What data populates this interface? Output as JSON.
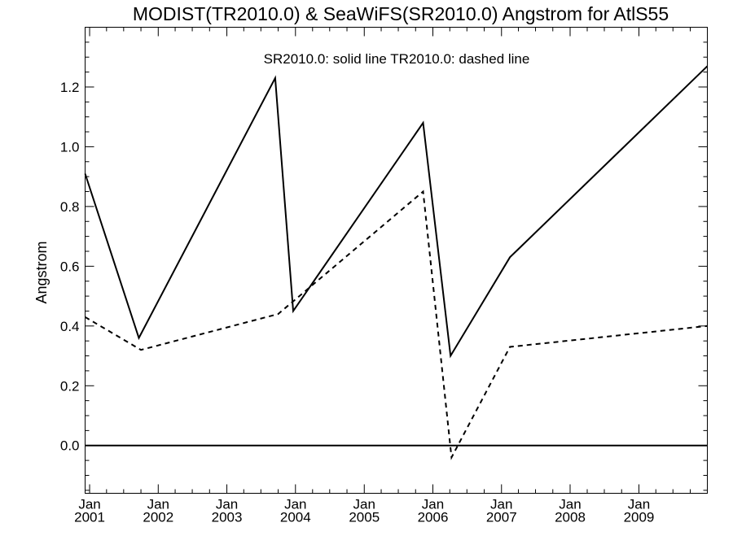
{
  "chart_data": {
    "type": "line",
    "title": "MODIST(TR2010.0) & SeaWiFS(SR2010.0)  Angstrom for AtlS55",
    "annotation": "SR2010.0: solid line   TR2010.0: dashed line",
    "xlabel": "",
    "ylabel": "Angstrom",
    "xlim": [
      "2000-12-08",
      "2009-12-31"
    ],
    "ylim": [
      -0.16,
      1.4
    ],
    "yticks": [
      "0.0",
      "0.2",
      "0.4",
      "0.6",
      "0.8",
      "1.0",
      "1.2"
    ],
    "xticks": [
      {
        "month": "Jan",
        "year": "2001",
        "date": "2001-01-01"
      },
      {
        "month": "Jan",
        "year": "2002",
        "date": "2002-01-01"
      },
      {
        "month": "Jan",
        "year": "2003",
        "date": "2003-01-01"
      },
      {
        "month": "Jan",
        "year": "2004",
        "date": "2004-01-01"
      },
      {
        "month": "Jan",
        "year": "2005",
        "date": "2005-01-01"
      },
      {
        "month": "Jan",
        "year": "2006",
        "date": "2006-01-01"
      },
      {
        "month": "Jan",
        "year": "2007",
        "date": "2007-01-01"
      },
      {
        "month": "Jan",
        "year": "2008",
        "date": "2008-01-01"
      },
      {
        "month": "Jan",
        "year": "2009",
        "date": "2009-01-01"
      }
    ],
    "reference_line_y": 0.0,
    "series": [
      {
        "style": "solid",
        "x": [
          "2000-12-08",
          "2001-09-20",
          "2003-09-15",
          "2003-12-20",
          "2005-11-10",
          "2006-04-05",
          "2007-02-15",
          "2009-12-31"
        ],
        "values": [
          0.91,
          0.36,
          1.23,
          0.45,
          1.08,
          0.3,
          0.63,
          1.27
        ]
      },
      {
        "style": "dashed",
        "x": [
          "2000-12-08",
          "2001-10-01",
          "2003-10-01",
          "2005-11-10",
          "2006-04-10",
          "2007-02-15",
          "2009-12-31"
        ],
        "values": [
          0.43,
          0.32,
          0.44,
          0.85,
          -0.04,
          0.33,
          0.4
        ]
      }
    ]
  }
}
